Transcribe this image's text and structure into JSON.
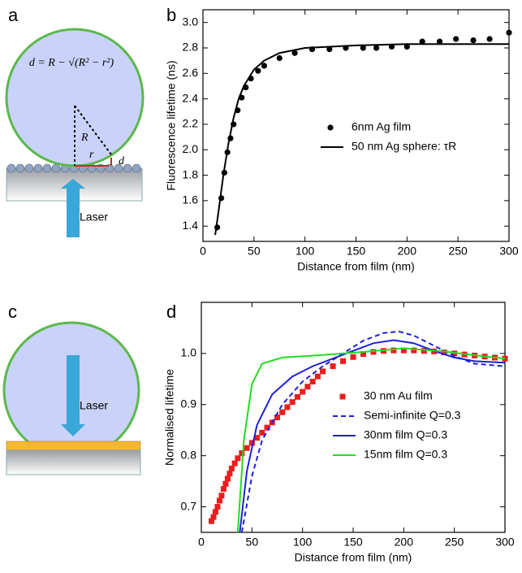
{
  "panel_labels": [
    "a",
    "b",
    "c",
    "d"
  ],
  "diagrams": {
    "a": {
      "formula": "d = R − √(R² − r²)",
      "radius_label": "R",
      "r_label": "r",
      "d_label": "d",
      "beam_label": "Laser"
    },
    "c": {
      "beam_label": "Laser"
    }
  },
  "chart_data": [
    {
      "type": "line",
      "xlabel": "Distance from film (nm)",
      "ylabel": "Fluorescence lifetime (ns)",
      "xlim": [
        0,
        300
      ],
      "ylim": [
        1.28,
        3.1
      ],
      "xticks": [
        0,
        50,
        100,
        150,
        200,
        250,
        300
      ],
      "yticks": [
        1.4,
        1.6,
        1.8,
        {
          "value": 2,
          "label": "2.0"
        },
        2.2,
        2.4,
        2.6,
        2.8,
        {
          "value": 3,
          "label": "3.0"
        }
      ],
      "legend": "center",
      "series": [
        {
          "name": "6nm Ag film",
          "type": "scatter",
          "marker": "circle",
          "color": "#000000",
          "x": [
            14,
            18,
            21,
            24,
            27,
            30,
            34,
            38,
            42,
            47,
            54,
            60,
            75,
            90,
            107,
            124,
            140,
            157,
            170,
            185,
            200,
            215,
            232,
            248,
            265,
            281,
            300
          ],
          "values": [
            1.39,
            1.62,
            1.82,
            1.98,
            2.09,
            2.2,
            2.31,
            2.41,
            2.49,
            2.56,
            2.62,
            2.66,
            2.72,
            2.76,
            2.79,
            2.79,
            2.8,
            2.8,
            2.8,
            2.81,
            2.81,
            2.85,
            2.85,
            2.87,
            2.86,
            2.87,
            2.92
          ]
        },
        {
          "name": "50 nm Ag sphere: τR",
          "type": "line",
          "color": "#000000",
          "x": [
            12,
            15,
            20,
            25,
            30,
            35,
            40,
            50,
            60,
            75,
            100,
            150,
            200,
            300
          ],
          "values": [
            1.33,
            1.5,
            1.8,
            2.05,
            2.25,
            2.4,
            2.5,
            2.63,
            2.7,
            2.76,
            2.8,
            2.82,
            2.83,
            2.83
          ]
        }
      ]
    },
    {
      "type": "line",
      "xlabel": "Distance from film (nm)",
      "ylabel": "Normalised lifetime",
      "xlim": [
        0,
        300
      ],
      "ylim": [
        0.65,
        1.1
      ],
      "xticks": [
        0,
        50,
        100,
        150,
        200,
        250,
        300
      ],
      "yticks": [
        0.7,
        0.8,
        0.9,
        {
          "value": 1,
          "label": "1.0"
        }
      ],
      "legend": "lower-right",
      "series": [
        {
          "name": "30 nm Au film",
          "type": "scatter",
          "marker": "square",
          "color": "#ee1c1c",
          "x": [
            10,
            12,
            14,
            16,
            18,
            20,
            22,
            24,
            26,
            28,
            30,
            33,
            36,
            40,
            45,
            50,
            55,
            60,
            65,
            70,
            75,
            80,
            85,
            90,
            95,
            100,
            105,
            110,
            115,
            120,
            130,
            140,
            150,
            160,
            170,
            180,
            190,
            200,
            210,
            220,
            230,
            240,
            250,
            260,
            270,
            280,
            290,
            300
          ],
          "values": [
            0.672,
            0.68,
            0.69,
            0.7,
            0.712,
            0.722,
            0.735,
            0.745,
            0.755,
            0.765,
            0.775,
            0.785,
            0.795,
            0.805,
            0.815,
            0.825,
            0.835,
            0.845,
            0.855,
            0.865,
            0.875,
            0.885,
            0.895,
            0.905,
            0.915,
            0.925,
            0.935,
            0.945,
            0.955,
            0.965,
            0.975,
            0.985,
            0.993,
            0.999,
            1.003,
            1.005,
            1.006,
            1.006,
            1.006,
            1.005,
            1.004,
            1.002,
            1.0,
            0.998,
            0.996,
            0.994,
            0.992,
            0.99
          ]
        },
        {
          "name": "Semi-infinite Q=0.3",
          "type": "line",
          "dash": true,
          "color": "#1f1fd6",
          "x": [
            40,
            50,
            60,
            80,
            100,
            120,
            140,
            160,
            180,
            195,
            210,
            230,
            250,
            270,
            300
          ],
          "values": [
            0.65,
            0.76,
            0.83,
            0.9,
            0.945,
            0.975,
            1.0,
            1.025,
            1.04,
            1.043,
            1.035,
            1.015,
            0.995,
            0.98,
            0.975
          ]
        },
        {
          "name": "30nm film Q=0.3",
          "type": "line",
          "color": "#1f1fd6",
          "x": [
            38,
            45,
            55,
            70,
            90,
            110,
            130,
            150,
            170,
            190,
            210,
            230,
            250,
            270,
            300
          ],
          "values": [
            0.65,
            0.77,
            0.86,
            0.92,
            0.955,
            0.975,
            0.99,
            1.005,
            1.02,
            1.026,
            1.02,
            1.005,
            0.992,
            0.985,
            0.982
          ]
        },
        {
          "name": "15nm film Q=0.3",
          "type": "line",
          "color": "#22dd22",
          "x": [
            36,
            42,
            50,
            60,
            80,
            120,
            160,
            200,
            240,
            280,
            300
          ],
          "values": [
            0.65,
            0.83,
            0.94,
            0.98,
            0.992,
            0.997,
            1.003,
            1.01,
            1.004,
            0.994,
            0.99
          ]
        }
      ]
    }
  ]
}
